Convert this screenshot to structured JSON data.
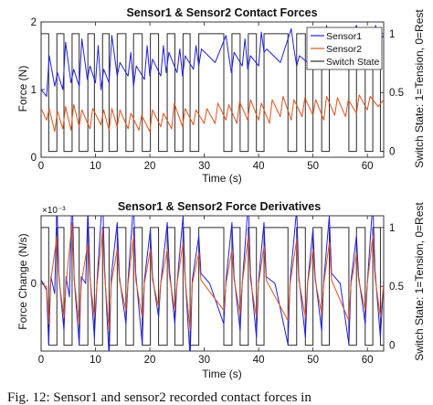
{
  "caption": "Fig. 12: Sensor1 and sensor2 recorded contact forces in",
  "chart_data": [
    {
      "type": "line",
      "title": "Sensor1 & Sensor2 Contact Forces",
      "xlabel": "Time (s)",
      "ylabel": "Force (N)",
      "y2label": "Switch State: 1=Tension, 0=Rest",
      "xlim": [
        0,
        63
      ],
      "ylim": [
        0,
        2
      ],
      "y2lim": [
        -0.05,
        1.1
      ],
      "xticks": [
        "0",
        "10",
        "20",
        "30",
        "40",
        "50",
        "60"
      ],
      "yticks": [
        "0",
        "1",
        "2"
      ],
      "y2ticks": [
        "0",
        "0.5",
        "1"
      ],
      "legend": [
        "Sensor1",
        "Sensor2",
        "Switch State"
      ],
      "legend_position": "top-right",
      "colors": {
        "sensor1": "#1f1fe0",
        "sensor2": "#e0521a",
        "switch": "#2b2b2b"
      },
      "switch_intervals": [
        [
          0,
          1.4
        ],
        [
          2.9,
          4.2
        ],
        [
          5.7,
          7.0
        ],
        [
          8.6,
          9.8
        ],
        [
          11.3,
          12.5
        ],
        [
          14.0,
          15.6
        ],
        [
          17.0,
          18.6
        ],
        [
          20.1,
          21.6
        ],
        [
          23.2,
          24.6
        ],
        [
          26.1,
          27.4
        ],
        [
          29.0,
          33.6
        ],
        [
          35.1,
          36.6
        ],
        [
          38.1,
          39.6
        ],
        [
          41.0,
          45.4
        ],
        [
          47.0,
          48.6
        ],
        [
          50.0,
          51.6
        ],
        [
          53.0,
          56.6
        ],
        [
          58.0,
          59.6
        ],
        [
          61.0,
          62.4
        ]
      ],
      "series": [
        {
          "name": "Sensor1",
          "x": [
            0,
            1,
            1.5,
            2.5,
            3,
            4,
            4.5,
            5.5,
            6,
            7,
            7.5,
            8.5,
            9,
            10,
            10.5,
            11,
            11.5,
            12.5,
            13,
            14,
            14.5,
            16,
            16.5,
            17,
            17.5,
            19,
            19.5,
            20,
            20.5,
            22,
            22.5,
            23,
            23.5,
            25,
            25.5,
            26,
            26.5,
            28,
            28.5,
            29,
            29.5,
            32,
            34,
            34.5,
            35,
            35.5,
            37,
            37.5,
            38,
            38.5,
            40,
            40.5,
            41,
            41.5,
            44,
            46,
            46.5,
            47,
            47.5,
            49,
            49.5,
            50,
            50.5,
            52,
            52.5,
            53,
            53.5,
            56,
            58,
            58.5,
            59,
            61,
            61.5,
            62,
            63
          ],
          "y": [
            1.0,
            0.9,
            1.5,
            1.05,
            1.25,
            1.0,
            1.7,
            1.1,
            1.3,
            1.05,
            1.75,
            1.15,
            1.35,
            1.1,
            1.65,
            1.0,
            1.3,
            1.1,
            1.8,
            1.2,
            1.4,
            1.2,
            1.55,
            1.05,
            1.35,
            1.15,
            1.65,
            1.2,
            1.45,
            1.2,
            1.65,
            1.25,
            1.55,
            1.25,
            1.6,
            1.2,
            1.5,
            1.3,
            1.65,
            1.35,
            1.6,
            1.4,
            1.8,
            1.5,
            1.25,
            1.55,
            1.35,
            1.75,
            1.3,
            1.5,
            1.35,
            1.85,
            1.55,
            1.6,
            1.4,
            1.9,
            1.6,
            1.35,
            1.5,
            1.4,
            1.9,
            1.5,
            1.65,
            1.45,
            1.95,
            1.6,
            1.8,
            1.55,
            1.95,
            1.7,
            1.8,
            1.6,
            1.95,
            1.7,
            1.8
          ]
        },
        {
          "name": "Sensor2",
          "x": [
            0,
            1,
            1.5,
            2.5,
            3,
            4,
            4.5,
            5.5,
            6,
            7,
            7.5,
            9,
            9.5,
            11,
            11.5,
            12.5,
            13,
            14,
            14.5,
            16,
            16.5,
            18,
            18.5,
            20,
            20.5,
            22,
            22.5,
            24,
            24.5,
            26,
            26.5,
            28,
            28.5,
            30,
            30.5,
            32,
            32.5,
            34,
            34.5,
            36,
            36.5,
            38,
            38.5,
            40,
            40.5,
            42,
            42.5,
            44,
            44.5,
            46,
            46.5,
            48,
            48.5,
            50,
            50.5,
            52,
            52.5,
            54,
            54.5,
            56,
            56.5,
            58,
            58.5,
            60,
            60.5,
            62,
            63
          ],
          "y": [
            0.72,
            0.55,
            0.72,
            0.38,
            0.68,
            0.42,
            0.75,
            0.4,
            0.78,
            0.45,
            0.7,
            0.42,
            0.72,
            0.48,
            0.7,
            0.4,
            0.72,
            0.45,
            0.7,
            0.42,
            0.65,
            0.4,
            0.62,
            0.38,
            0.7,
            0.45,
            0.65,
            0.42,
            0.8,
            0.45,
            0.72,
            0.48,
            0.7,
            0.5,
            0.72,
            0.5,
            0.8,
            0.55,
            0.78,
            0.5,
            0.82,
            0.55,
            0.85,
            0.55,
            0.8,
            0.5,
            0.85,
            0.6,
            0.9,
            0.55,
            0.85,
            0.6,
            0.88,
            0.62,
            0.85,
            0.55,
            0.9,
            0.62,
            0.88,
            0.6,
            0.85,
            0.65,
            0.92,
            0.7,
            0.9,
            0.75,
            0.85
          ]
        }
      ]
    },
    {
      "type": "line",
      "title": "Sensor1 & Sensor2 Force Derivatives",
      "xlabel": "Time (s)",
      "ylabel": "Force Change (N/s)",
      "y2label": "Switch State: 1=Tension, 0=Rest",
      "exponent_label": "×10⁻³",
      "xlim": [
        0,
        63
      ],
      "ylim": [
        -1,
        1
      ],
      "y2lim": [
        -0.05,
        1.1
      ],
      "xticks": [
        "0",
        "10",
        "20",
        "30",
        "40",
        "50",
        "60"
      ],
      "yticks": [
        "0"
      ],
      "y2ticks": [
        "0",
        "0.5",
        "1"
      ],
      "colors": {
        "sensor1": "#1f1fe0",
        "sensor2": "#e0521a",
        "switch": "#2b2b2b"
      },
      "series": [
        {
          "name": "Sensor1",
          "x": [
            0,
            1,
            1.4,
            1.8,
            2.5,
            2.9,
            3.3,
            4.2,
            4.6,
            5.2,
            5.7,
            6.1,
            7.0,
            7.4,
            8.2,
            8.6,
            9.0,
            9.8,
            10.3,
            11.3,
            11.7,
            12.5,
            12.9,
            14.0,
            14.4,
            15.6,
            16.0,
            17.0,
            17.4,
            18.6,
            19.0,
            20.1,
            20.5,
            21.6,
            22.0,
            23.2,
            23.6,
            24.6,
            25.0,
            26.1,
            26.5,
            27.4,
            27.8,
            29.0,
            29.4,
            31,
            33.6,
            34.0,
            35.1,
            35.5,
            36.6,
            37.0,
            38.1,
            38.5,
            39.6,
            40.0,
            41.0,
            41.4,
            43,
            45.4,
            45.8,
            47.0,
            47.4,
            48.6,
            49.0,
            50.0,
            50.4,
            51.6,
            52.0,
            53.0,
            53.4,
            55,
            56.6,
            57.0,
            58.0,
            58.4,
            59.6,
            60.0,
            61.0,
            61.4,
            62.4,
            63
          ],
          "y": [
            0.05,
            -0.1,
            -0.9,
            0.1,
            -0.15,
            1.2,
            0.1,
            -0.7,
            0.1,
            -0.2,
            1.4,
            0.05,
            -0.9,
            0.1,
            0.0,
            1.1,
            0.1,
            -0.8,
            0.05,
            1.3,
            0.2,
            -1.1,
            0.1,
            0.9,
            0.1,
            -0.6,
            0.05,
            1.2,
            0.15,
            -0.9,
            0.05,
            0.8,
            0.1,
            -0.5,
            0.0,
            0.9,
            0.2,
            -0.6,
            0.0,
            1.0,
            0.1,
            -1.1,
            0.05,
            0.7,
            0.15,
            0.0,
            -0.6,
            0.05,
            0.9,
            0.1,
            -0.7,
            0.0,
            1.2,
            0.15,
            -0.8,
            0.05,
            0.9,
            0.1,
            0.0,
            -0.9,
            0.05,
            1.1,
            0.1,
            -0.8,
            0.0,
            0.8,
            0.1,
            -0.7,
            0.05,
            1.0,
            0.15,
            0.0,
            -0.9,
            0.05,
            0.7,
            0.1,
            -0.6,
            0.0,
            1.2,
            0.2,
            -0.8,
            0.05
          ]
        },
        {
          "name": "Sensor2",
          "x": [
            0,
            1,
            1.4,
            1.8,
            2.9,
            3.3,
            4.2,
            4.6,
            5.7,
            6.1,
            7.0,
            7.4,
            8.6,
            9.0,
            9.8,
            10.3,
            11.3,
            11.7,
            12.5,
            12.9,
            14.0,
            14.4,
            15.6,
            16.0,
            17.0,
            17.4,
            18.6,
            19.0,
            20.1,
            20.5,
            21.6,
            22.0,
            23.2,
            23.6,
            24.6,
            25.0,
            26.1,
            26.5,
            27.4,
            27.8,
            29.0,
            29.4,
            33.6,
            34.0,
            35.1,
            35.5,
            36.6,
            37.0,
            38.1,
            38.5,
            39.6,
            40.0,
            41.0,
            41.4,
            45.4,
            45.8,
            47.0,
            47.4,
            48.6,
            49.0,
            50.0,
            50.4,
            51.6,
            52.0,
            53.0,
            53.4,
            56.6,
            57.0,
            58.0,
            58.4,
            59.6,
            60.0,
            61.0,
            61.4,
            62.4,
            63
          ],
          "y": [
            0.0,
            -0.05,
            -0.6,
            0.05,
            0.7,
            0.05,
            -0.5,
            0.0,
            0.9,
            0.05,
            -0.6,
            0.0,
            0.6,
            0.05,
            -0.5,
            0.0,
            0.8,
            0.1,
            -0.7,
            0.0,
            0.5,
            0.05,
            -0.4,
            0.0,
            0.7,
            0.05,
            -0.5,
            0.0,
            0.5,
            0.05,
            -0.35,
            0.0,
            0.5,
            0.1,
            -0.4,
            0.0,
            0.6,
            0.05,
            -0.7,
            0.0,
            0.45,
            0.05,
            -0.4,
            0.0,
            0.5,
            0.05,
            -0.45,
            0.0,
            0.7,
            0.05,
            -0.5,
            0.0,
            0.55,
            0.05,
            -0.55,
            0.0,
            0.65,
            0.05,
            -0.5,
            0.0,
            0.5,
            0.05,
            -0.45,
            0.0,
            0.6,
            0.05,
            -0.55,
            0.0,
            0.45,
            0.05,
            -0.4,
            0.0,
            0.7,
            0.1,
            -0.5,
            0.0
          ]
        }
      ]
    }
  ]
}
